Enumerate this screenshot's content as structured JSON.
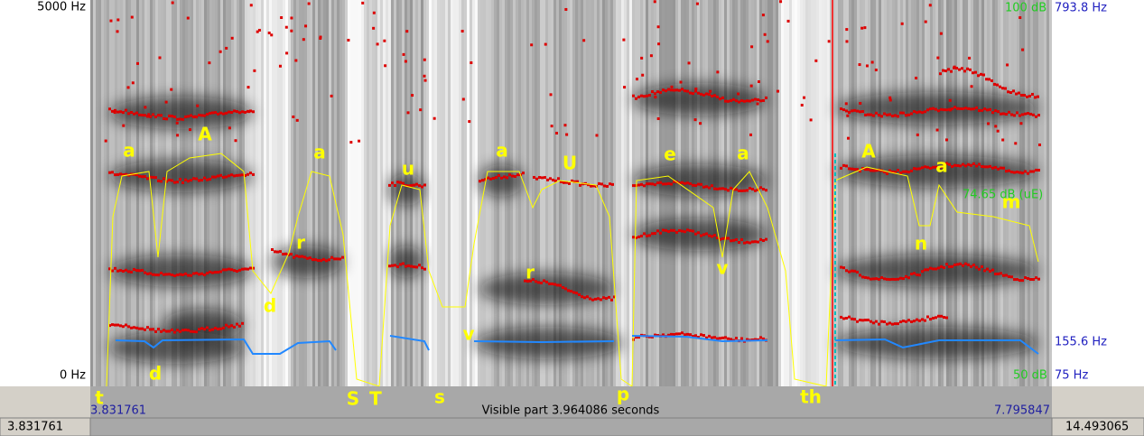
{
  "left_axis": {
    "top": "5000 Hz",
    "bottom": "0 Hz"
  },
  "right_axis": {
    "db_top": "100 dB",
    "hz_top": "793.8 Hz",
    "db_cursor": "74.65 dB (uE)",
    "hz_mid": "155.6 Hz",
    "db_bottom": "50 dB",
    "hz_bottom": "75 Hz"
  },
  "phone_labels": [
    "a",
    "A",
    "a",
    "u",
    "a",
    "U",
    "e",
    "a",
    "A",
    "a",
    "r",
    "r",
    "v",
    "n",
    "m",
    "d",
    "v",
    "d",
    "t",
    "S",
    "T",
    "s",
    "p",
    "th"
  ],
  "time_bar": {
    "start": "3.831761",
    "visible": "Visible part 3.964086 seconds",
    "end": "7.795847"
  },
  "status_bar": {
    "left": "3.831761",
    "right": "14.493065"
  }
}
